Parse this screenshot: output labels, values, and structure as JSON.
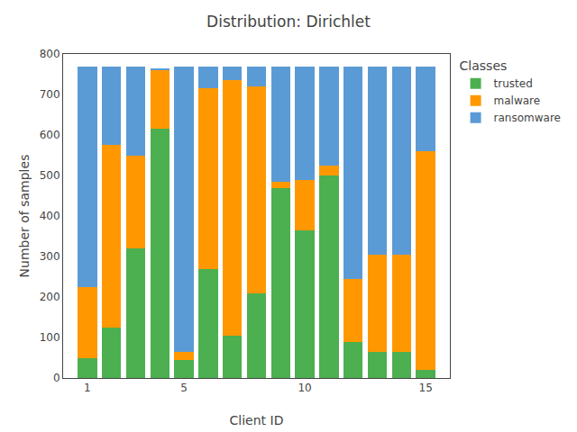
{
  "chart_data": {
    "type": "bar",
    "title": "Distribution: Dirichlet",
    "x_label": "Client ID",
    "y_label": "Number of samples",
    "x": [
      1,
      2,
      3,
      4,
      5,
      6,
      7,
      8,
      9,
      10,
      11,
      12,
      13,
      14,
      15
    ],
    "series": [
      {
        "name": "trusted",
        "color": "#4caf50",
        "values": [
          50,
          125,
          320,
          615,
          45,
          270,
          105,
          210,
          470,
          365,
          500,
          90,
          65,
          65,
          20
        ]
      },
      {
        "name": "malware",
        "color": "#ff9800",
        "values": [
          175,
          450,
          230,
          145,
          20,
          445,
          630,
          510,
          15,
          125,
          25,
          155,
          240,
          240,
          540
        ]
      },
      {
        "name": "ransomware",
        "color": "#5b9bd5",
        "values": [
          545,
          195,
          220,
          5,
          705,
          55,
          35,
          50,
          285,
          280,
          245,
          525,
          465,
          465,
          210
        ]
      }
    ],
    "stacked": true,
    "xlim": [
      0,
      16
    ],
    "xticks": [
      1,
      5,
      10,
      15
    ],
    "ylim": [
      0,
      800
    ],
    "yticks": [
      0,
      100,
      200,
      300,
      400,
      500,
      600,
      700,
      800
    ],
    "grid": false,
    "legend": "upper right",
    "legend_title": "Classes"
  }
}
